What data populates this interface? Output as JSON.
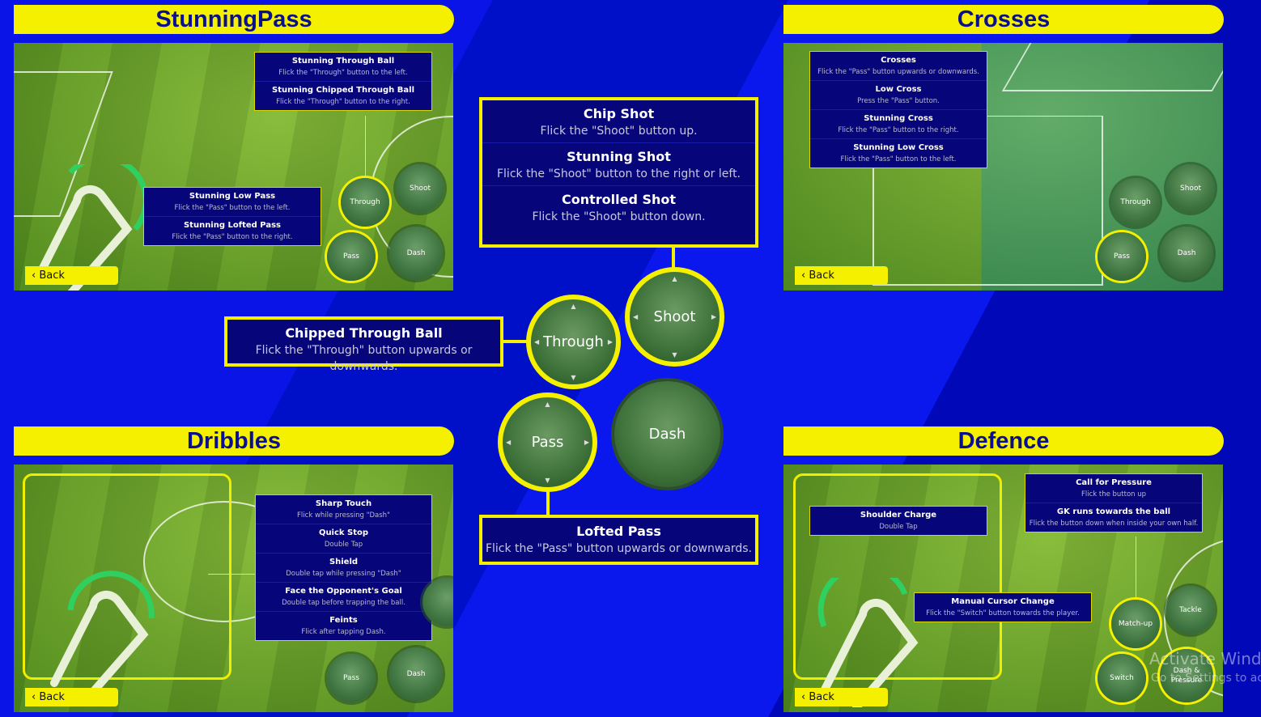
{
  "colors": {
    "background": "#0a14e6",
    "accent": "#f4f000",
    "box": "#06067a"
  },
  "panels": {
    "stunning_pass": {
      "title": "StunningPass",
      "box_a": [
        {
          "title": "Stunning Through Ball",
          "desc": "Flick the \"Through\" button to the left."
        },
        {
          "title": "Stunning Chipped Through Ball",
          "desc": "Flick the \"Through\" button to the right."
        }
      ],
      "box_b": [
        {
          "title": "Stunning Low Pass",
          "desc": "Flick the \"Pass\" button to the left."
        },
        {
          "title": "Stunning Lofted Pass",
          "desc": "Flick the \"Pass\" button to the right."
        }
      ],
      "buttons": {
        "through": "Through",
        "shoot": "Shoot",
        "pass": "Pass",
        "dash": "Dash"
      },
      "back": "Back"
    },
    "crosses": {
      "title": "Crosses",
      "box": [
        {
          "title": "Crosses",
          "desc": "Flick the \"Pass\" button upwards or downwards."
        },
        {
          "title": "Low Cross",
          "desc": "Press the \"Pass\" button."
        },
        {
          "title": "Stunning Cross",
          "desc": "Flick the \"Pass\" button to the right."
        },
        {
          "title": "Stunning Low Cross",
          "desc": "Flick the \"Pass\" button to the left."
        }
      ],
      "buttons": {
        "through": "Through",
        "shoot": "Shoot",
        "pass": "Pass",
        "dash": "Dash"
      },
      "back": "Back"
    },
    "dribbles": {
      "title": "Dribbles",
      "box": [
        {
          "title": "Sharp Touch",
          "desc": "Flick while pressing \"Dash\""
        },
        {
          "title": "Quick Stop",
          "desc": "Double Tap"
        },
        {
          "title": "Shield",
          "desc": "Double tap while pressing \"Dash\""
        },
        {
          "title": "Face the Opponent's Goal",
          "desc": "Double tap before trapping the ball."
        },
        {
          "title": "Feints",
          "desc": "Flick after tapping Dash."
        }
      ],
      "buttons": {
        "pass": "Pass",
        "dash": "Dash"
      },
      "back": "Back"
    },
    "defence": {
      "title": "Defence",
      "shoulder": {
        "title": "Shoulder Charge",
        "desc": "Double Tap"
      },
      "pressure": [
        {
          "title": "Call for Pressure",
          "desc": "Flick the button up"
        },
        {
          "title": "GK runs towards the ball",
          "desc": "Flick the button down when inside your own half."
        }
      ],
      "manual": {
        "title": "Manual Cursor Change",
        "desc": "Flick the \"Switch\" button towards the player."
      },
      "buttons": {
        "matchup": "Match-up",
        "tackle": "Tackle",
        "switch": "Switch",
        "dash_pressure": "Dash & Pressure"
      },
      "back": "Back"
    }
  },
  "center": {
    "shot_box": [
      {
        "title": "Chip Shot",
        "desc": "Flick the \"Shoot\" button up."
      },
      {
        "title": "Stunning Shot",
        "desc": "Flick the \"Shoot\" button to the right or left."
      },
      {
        "title": "Controlled Shot",
        "desc": "Flick the \"Shoot\" button down."
      }
    ],
    "through_box": {
      "title": "Chipped Through Ball",
      "desc": "Flick the \"Through\" button upwards or downwards."
    },
    "lofted_box": {
      "title": "Lofted Pass",
      "desc": "Flick the \"Pass\" button upwards or downwards."
    },
    "buttons": {
      "through": "Through",
      "shoot": "Shoot",
      "pass": "Pass",
      "dash": "Dash"
    }
  },
  "watermark": {
    "line1": "Activate Windows",
    "line2": "Go to Settings to activate Windows."
  }
}
